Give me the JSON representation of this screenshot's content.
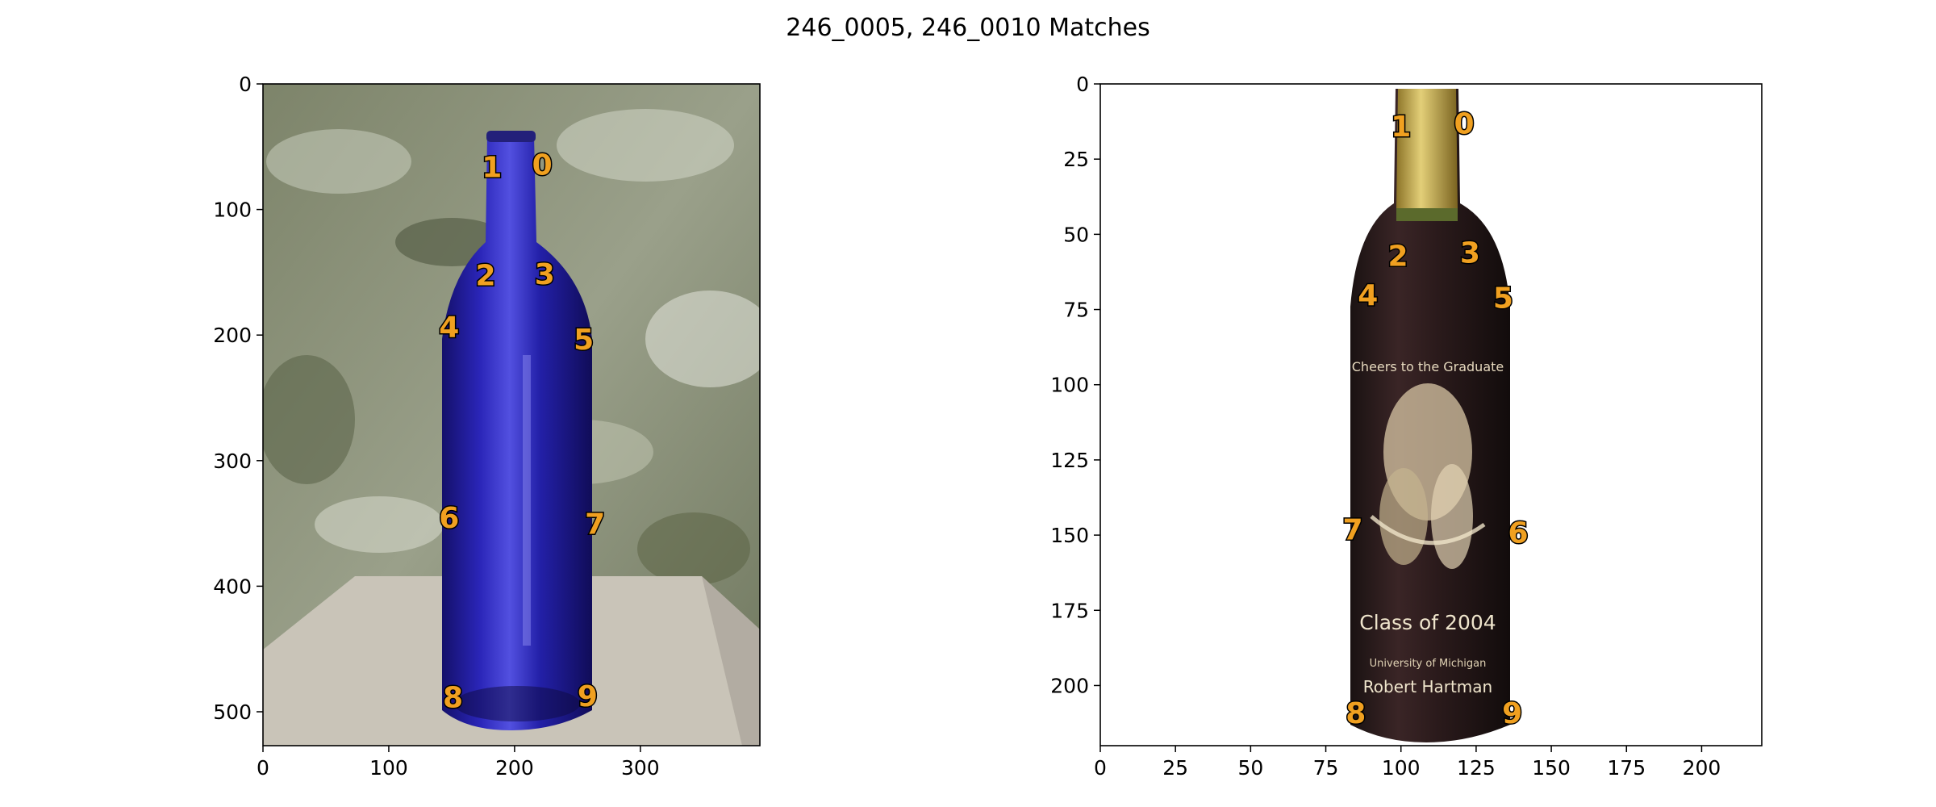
{
  "title": "246_0005, 246_0010 Matches",
  "label_color": "#f0a020",
  "chart_data": [
    {
      "type": "scatter",
      "image_content": "photo of a cobalt-blue glass wine bottle standing on a light table against a green marbled wall",
      "xlim": [
        0,
        395
      ],
      "ylim": [
        527,
        0
      ],
      "xticks": [
        0,
        100,
        200,
        300
      ],
      "yticks": [
        0,
        100,
        200,
        300,
        400,
        500
      ],
      "grid": false,
      "points": [
        {
          "label": "0",
          "x": 222,
          "y": 64
        },
        {
          "label": "1",
          "x": 182,
          "y": 66
        },
        {
          "label": "2",
          "x": 177,
          "y": 152
        },
        {
          "label": "3",
          "x": 224,
          "y": 151
        },
        {
          "label": "4",
          "x": 148,
          "y": 193
        },
        {
          "label": "5",
          "x": 255,
          "y": 203
        },
        {
          "label": "6",
          "x": 148,
          "y": 345
        },
        {
          "label": "7",
          "x": 264,
          "y": 350
        },
        {
          "label": "8",
          "x": 151,
          "y": 488
        },
        {
          "label": "9",
          "x": 258,
          "y": 487
        }
      ]
    },
    {
      "type": "scatter",
      "image_content": "photo of a dark red wine bottle with gold foil capsule and engraved label on a white background",
      "label_text": [
        "Cheers to the Graduate",
        "Class of 2004",
        "University of Michigan",
        "Robert Hartman"
      ],
      "xlim": [
        0,
        220
      ],
      "ylim": [
        220,
        0
      ],
      "xticks": [
        0,
        25,
        50,
        75,
        100,
        125,
        150,
        175,
        200
      ],
      "yticks": [
        0,
        25,
        50,
        75,
        100,
        125,
        150,
        175,
        200
      ],
      "grid": false,
      "points": [
        {
          "label": "0",
          "x": 121,
          "y": 13
        },
        {
          "label": "1",
          "x": 100,
          "y": 14
        },
        {
          "label": "2",
          "x": 99,
          "y": 57
        },
        {
          "label": "3",
          "x": 123,
          "y": 56
        },
        {
          "label": "4",
          "x": 89,
          "y": 70
        },
        {
          "label": "5",
          "x": 134,
          "y": 71
        },
        {
          "label": "6",
          "x": 139,
          "y": 149
        },
        {
          "label": "7",
          "x": 84,
          "y": 148
        },
        {
          "label": "8",
          "x": 85,
          "y": 209
        },
        {
          "label": "9",
          "x": 137,
          "y": 209
        }
      ]
    }
  ]
}
